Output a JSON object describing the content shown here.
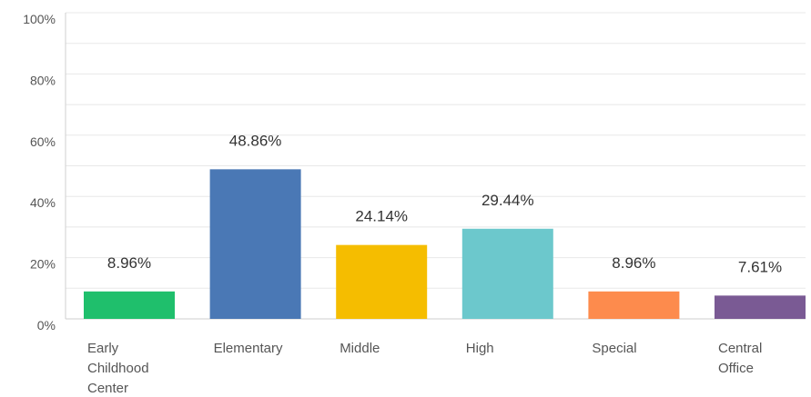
{
  "chart_data": {
    "type": "bar",
    "categories": [
      "Early Childhood Center",
      "Elementary",
      "Middle",
      "High",
      "Special",
      "Central Office"
    ],
    "category_lines": [
      [
        "Early",
        "Childhood",
        "Center"
      ],
      [
        "Elementary"
      ],
      [
        "Middle"
      ],
      [
        "High"
      ],
      [
        "Special"
      ],
      [
        "Central",
        "Office"
      ]
    ],
    "values": [
      8.96,
      48.86,
      24.14,
      29.44,
      8.96,
      7.61
    ],
    "data_labels": [
      "8.96%",
      "48.86%",
      "24.14%",
      "29.44%",
      "8.96%",
      "7.61%"
    ],
    "colors": [
      "#1fbf6c",
      "#4a78b5",
      "#f5bd00",
      "#6cc8cc",
      "#fd8b4d",
      "#7a5a94"
    ],
    "yticks": [
      0,
      20,
      40,
      60,
      80,
      100
    ],
    "ytick_labels": [
      "0%",
      "20%",
      "40%",
      "60%",
      "80%",
      "100%"
    ],
    "ylim": [
      0,
      100
    ],
    "grid": true,
    "title": "",
    "xlabel": "",
    "ylabel": ""
  }
}
